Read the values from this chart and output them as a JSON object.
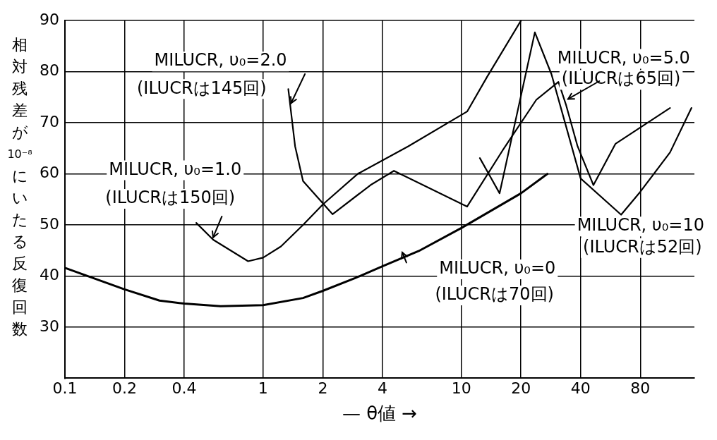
{
  "chart_data": {
    "type": "line",
    "xlabel": "— θ値 →",
    "ylabel": "相対残差が10⁻⁸にいたる反復回数",
    "log": "x",
    "xlim": [
      0.1,
      150
    ],
    "xticks": [
      0.1,
      0.2,
      0.4,
      1,
      2,
      4,
      10,
      20,
      40,
      80
    ],
    "ylim": [
      20,
      90
    ],
    "yticks": [
      30,
      40,
      50,
      60,
      70,
      80,
      90
    ],
    "grid": true,
    "legend": false,
    "marker": "none",
    "line_style": "solid",
    "series": [
      {
        "color": "#000000",
        "x": [
          0.1,
          0.2,
          0.3,
          0.4,
          0.61,
          1,
          1.59,
          2,
          2.91,
          4,
          6.1,
          10,
          20,
          27.2
        ],
        "values": [
          41.6,
          37.4,
          35.2,
          34.6,
          34.1,
          34.3,
          35.7,
          37.1,
          39.6,
          41.9,
          44.9,
          49.4,
          56.2,
          60
        ]
      },
      {
        "color": "#000000",
        "x": [
          0.46,
          0.56,
          0.84,
          1,
          1.23,
          1.59,
          2,
          3,
          5.4,
          10.7,
          13.5,
          20
        ],
        "values": [
          50.4,
          47.1,
          42.9,
          43.6,
          45.8,
          50,
          54,
          60,
          65.4,
          72.2,
          79,
          90
        ]
      },
      {
        "color": "#000000",
        "x": [
          1.34,
          1.45,
          1.59,
          2.24,
          3.48,
          4.57,
          10.7
        ],
        "values": [
          76.6,
          65.4,
          58.6,
          52.1,
          57.8,
          60.6,
          53.6
        ]
      },
      {
        "color": "#000000",
        "x": [
          10.7,
          16.1,
          23.9,
          30.9,
          33.7,
          38.6,
          46.4,
          60,
          113
        ],
        "values": [
          53.6,
          64.5,
          74.5,
          78,
          73.6,
          65.4,
          57.8,
          65.9,
          72.9
        ]
      },
      {
        "color": "#000000",
        "x": [
          12.4,
          15.6,
          23.5,
          28.5,
          40,
          64,
          80,
          113,
          145
        ],
        "values": [
          63.1,
          56.2,
          87.7,
          79.5,
          59.1,
          52,
          56.5,
          64.2,
          72.9
        ]
      }
    ],
    "annotations": [
      {
        "text": "MILUCR, υ₀=2.0",
        "x": 1.38,
        "y": 73.8
      },
      "(ILUCRは145回)",
      "MILUCR, υ₀=1.0",
      {
        "text": "(ILUCRは150回)",
        "x": 0.56,
        "y": 47.6
      },
      {
        "text": "MILUCR, υ₀=5.0",
        "x": 34.5,
        "y": 74.6
      },
      "(ILUCRは65回)",
      "MILUCR, υ₀=10",
      "(ILUCRは52回)",
      "MILUCR, υ₀=0",
      "(ILUCRは70回)"
    ]
  }
}
